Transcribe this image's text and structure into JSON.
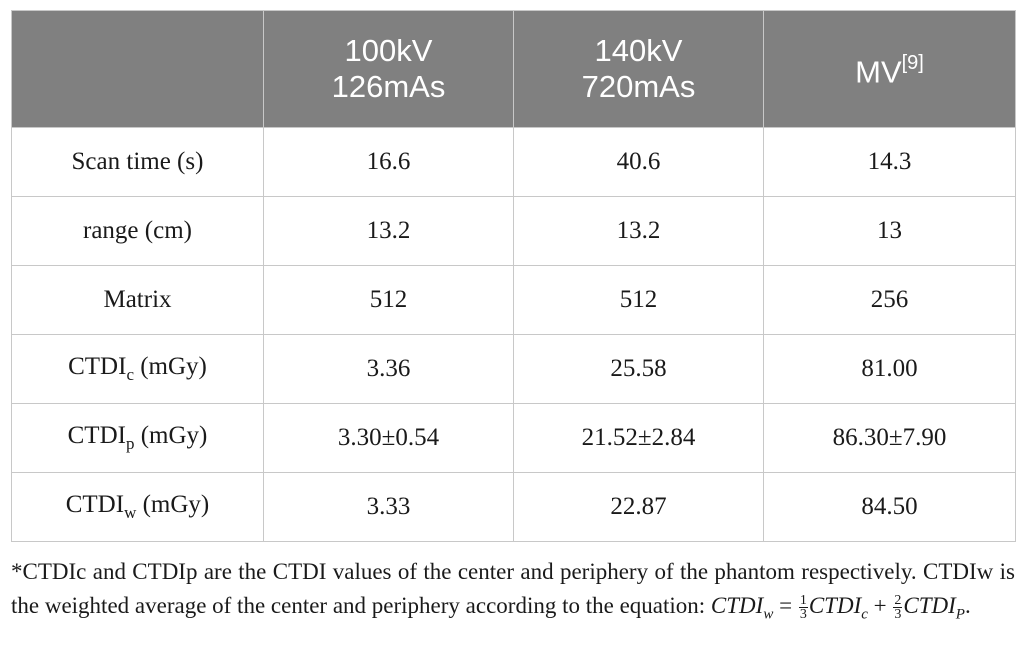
{
  "table": {
    "headers": [
      {
        "line1": "",
        "line2": "",
        "sup": ""
      },
      {
        "line1": "100kV",
        "line2": "126mAs",
        "sup": ""
      },
      {
        "line1": "140kV",
        "line2": "720mAs",
        "sup": ""
      },
      {
        "line1": "MV",
        "line2": "",
        "sup": "[9]"
      }
    ],
    "rows": [
      {
        "label": "Scan time (s)",
        "label_sub": "",
        "label_suffix": "",
        "values": [
          "16.6",
          "40.6",
          "14.3"
        ]
      },
      {
        "label": "range (cm)",
        "label_sub": "",
        "label_suffix": "",
        "values": [
          "13.2",
          "13.2",
          "13"
        ]
      },
      {
        "label": "Matrix",
        "label_sub": "",
        "label_suffix": "",
        "values": [
          "512",
          "512",
          "256"
        ]
      },
      {
        "label": "CTDI",
        "label_sub": "c",
        "label_suffix": " (mGy)",
        "values": [
          "3.36",
          "25.58",
          "81.00"
        ]
      },
      {
        "label": "CTDI",
        "label_sub": "p",
        "label_suffix": " (mGy)",
        "values": [
          "3.30±0.54",
          "21.52±2.84",
          "86.30±7.90"
        ]
      },
      {
        "label": "CTDI",
        "label_sub": "w",
        "label_suffix": " (mGy)",
        "values": [
          "3.33",
          "22.87",
          "84.50"
        ]
      }
    ]
  },
  "footnote": {
    "text": "*CTDIc and CTDIp are the CTDI values of the center and periphery of the phantom respectively. CTDIw is the weighted average of the center and periphery according to the equation: ",
    "equation": {
      "lhs": "CTDI",
      "lhs_sub": "w",
      "eq": " = ",
      "f1_num": "1",
      "f1_den": "3",
      "t1": "CTDI",
      "t1_sub": "c",
      "plus": " + ",
      "f2_num": "2",
      "f2_den": "3",
      "t2": "CTDI",
      "t2_sub": "P",
      "end": "."
    }
  }
}
